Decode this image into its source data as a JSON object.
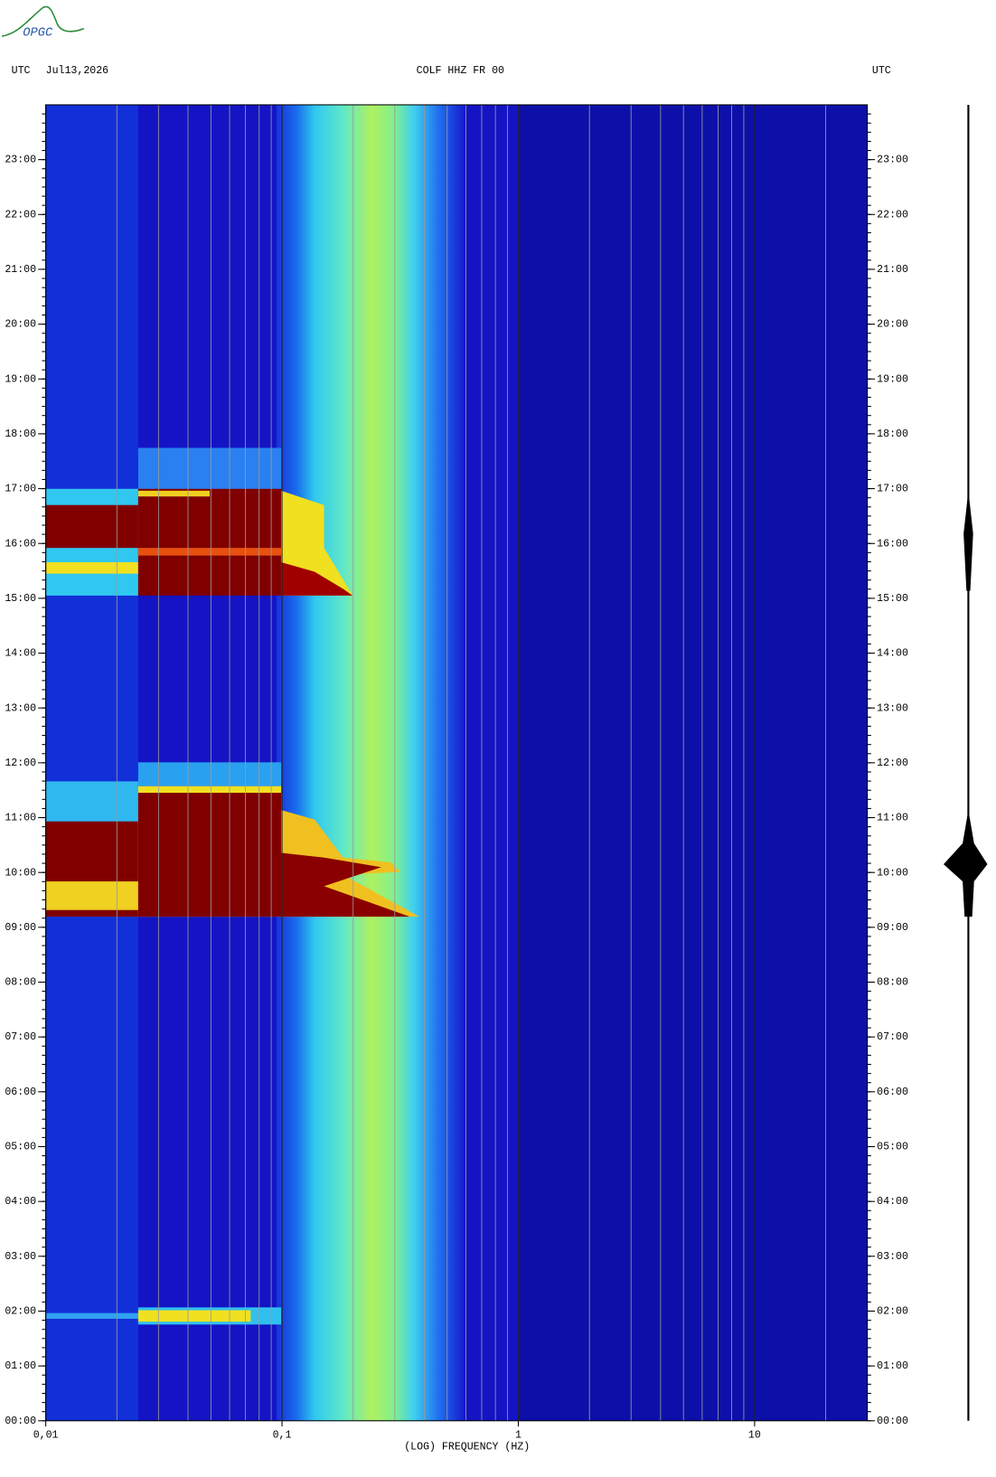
{
  "logo": "OPGC",
  "chart_data": {
    "type": "spectrogram",
    "title": "COLF HHZ FR 00",
    "date": "Jul13,2026",
    "time_zone_left": "UTC",
    "time_zone_right": "UTC",
    "x_label": "(LOG) FREQUENCY (HZ)",
    "x_scale": "log",
    "xlim": [
      0.01,
      30
    ],
    "xticks": [
      {
        "value": 0.01,
        "label": "0,01"
      },
      {
        "value": 0.1,
        "label": "0,1"
      },
      1,
      10
    ],
    "ylim": [
      0,
      24
    ],
    "yticks": [
      {
        "value": 0,
        "label": "00:00"
      },
      {
        "value": 1,
        "label": "01:00"
      },
      {
        "value": 2,
        "label": "02:00"
      },
      {
        "value": 3,
        "label": "03:00"
      },
      {
        "value": 4,
        "label": "04:00"
      },
      {
        "value": 5,
        "label": "05:00"
      },
      {
        "value": 6,
        "label": "06:00"
      },
      {
        "value": 7,
        "label": "07:00"
      },
      {
        "value": 8,
        "label": "08:00"
      },
      {
        "value": 9,
        "label": "09:00"
      },
      {
        "value": 10,
        "label": "10:00"
      },
      {
        "value": 11,
        "label": "11:00"
      },
      {
        "value": 12,
        "label": "12:00"
      },
      {
        "value": 13,
        "label": "13:00"
      },
      {
        "value": 14,
        "label": "14:00"
      },
      {
        "value": 15,
        "label": "15:00"
      },
      {
        "value": 16,
        "label": "16:00"
      },
      {
        "value": 17,
        "label": "17:00"
      },
      {
        "value": 18,
        "label": "18:00"
      },
      {
        "value": 19,
        "label": "19:00"
      },
      {
        "value": 20,
        "label": "20:00"
      },
      {
        "value": 21,
        "label": "21:00"
      },
      {
        "value": 22,
        "label": "22:00"
      },
      {
        "value": 23,
        "label": "23:00"
      }
    ]
  }
}
